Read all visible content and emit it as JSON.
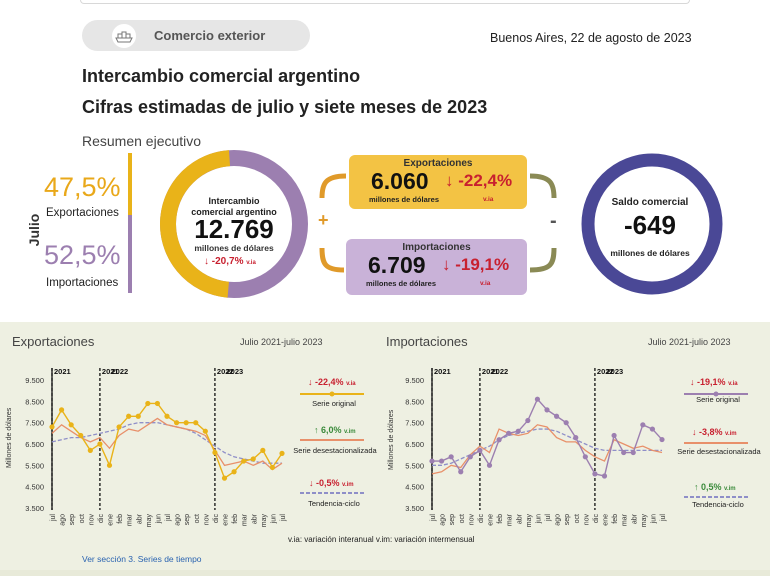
{
  "header": {
    "section_label": "Comercio exterior",
    "section_icon": "trade-ship-icon",
    "date": "Buenos Aires, 22 de agosto de 2023",
    "title": "Intercambio comercial argentino",
    "subtitle": "Cifras estimadas de julio y siete meses de 2023",
    "summary_label": "Resumen ejecutivo"
  },
  "summary": {
    "month_label": "Julio",
    "exports_share": "47,5%",
    "exports_share_label": "Exportaciones",
    "imports_share": "52,5%",
    "imports_share_label": "Importaciones",
    "exports_share_value": 47.5,
    "imports_share_value": 52.5,
    "interchange": {
      "title": "Intercambio comercial argentino",
      "value": "12.769",
      "unit": "millones de dólares",
      "variation": "-20,7%",
      "variation_suffix": "v.ia"
    },
    "plus_sign": "+",
    "minus_sign": "-",
    "exports": {
      "title": "Exportaciones",
      "value": "6.060",
      "unit": "millones de dólares",
      "variation": "-22,4%",
      "variation_suffix": "v.ia"
    },
    "imports": {
      "title": "Importaciones",
      "value": "6.709",
      "unit": "millones de dólares",
      "variation": "-19,1%",
      "variation_suffix": "v.ia"
    },
    "balance": {
      "title": "Saldo comercial",
      "value": "-649",
      "unit": "millones de dólares"
    }
  },
  "colors": {
    "exports": "#e9b319",
    "imports": "#9c7fb0",
    "seasonal": "#e8906a",
    "trend": "#8f8fc8",
    "balance_ring": "#4a4896",
    "negative": "#c8202f",
    "positive": "#3a8a3a"
  },
  "footer": {
    "note": "v.ia: variación interanual   v.im: variación intermensual",
    "link": "Ver sección 3. Series de tiempo"
  },
  "chart_data": [
    {
      "type": "line",
      "title": "Exportaciones",
      "period": "Julio 2021-julio 2023",
      "ylabel": "Millones de dólares",
      "ylim": [
        3500,
        9500
      ],
      "yticks": [
        "9.500",
        "8.500",
        "7.500",
        "6.500",
        "5.500",
        "4.500",
        "3.500"
      ],
      "ytick_values": [
        9500,
        8500,
        7500,
        6500,
        5500,
        4500,
        3500
      ],
      "year_labels": [
        "2021",
        "2021",
        "2022",
        "2022",
        "2023"
      ],
      "year_label_positions": [
        0,
        5,
        6,
        17,
        18
      ],
      "x": [
        "jul",
        "ago",
        "sep",
        "oct",
        "nov",
        "dic",
        "ene",
        "feb",
        "mar",
        "abr",
        "may",
        "jun",
        "jul",
        "ago",
        "sep",
        "oct",
        "nov",
        "dic",
        "ene",
        "feb",
        "mar",
        "abr",
        "may",
        "jun",
        "jul"
      ],
      "series": [
        {
          "name": "Serie original",
          "variation": "-22,4%",
          "variation_suffix": "v.ia",
          "direction": "down",
          "values": [
            7300,
            8100,
            7400,
            6900,
            6200,
            6500,
            5500,
            7300,
            7800,
            7800,
            8400,
            8400,
            7800,
            7500,
            7500,
            7500,
            7100,
            6100,
            4900,
            5200,
            5700,
            5800,
            6200,
            5400,
            6060
          ]
        },
        {
          "name": "Serie desestacionalizada",
          "variation": "6,0%",
          "variation_suffix": "v.im",
          "direction": "up",
          "values": [
            7000,
            7400,
            7100,
            6800,
            6600,
            6800,
            6300,
            6900,
            7200,
            7100,
            7400,
            7700,
            7400,
            7300,
            7200,
            7100,
            6900,
            6200,
            5500,
            5600,
            5700,
            5500,
            5700,
            5300,
            5600
          ]
        },
        {
          "name": "Tendencia-ciclo",
          "variation": "-0,5%",
          "variation_suffix": "v.im",
          "direction": "down",
          "values": [
            6600,
            6700,
            6800,
            6800,
            6900,
            7000,
            7100,
            7200,
            7400,
            7500,
            7500,
            7500,
            7400,
            7300,
            7200,
            7000,
            6700,
            6400,
            6100,
            5900,
            5800,
            5700,
            5600,
            5600,
            5600
          ]
        }
      ]
    },
    {
      "type": "line",
      "title": "Importaciones",
      "period": "Julio 2021-julio 2023",
      "ylabel": "Millones de dólares",
      "ylim": [
        3500,
        9500
      ],
      "yticks": [
        "9.500",
        "8.500",
        "7.500",
        "6.500",
        "5.500",
        "4.500",
        "3.500"
      ],
      "ytick_values": [
        9500,
        8500,
        7500,
        6500,
        5500,
        4500,
        3500
      ],
      "year_labels": [
        "2021",
        "2021",
        "2022",
        "2022",
        "2023"
      ],
      "year_label_positions": [
        0,
        5,
        6,
        17,
        18
      ],
      "x": [
        "jul",
        "ago",
        "sep",
        "oct",
        "nov",
        "dic",
        "ene",
        "feb",
        "mar",
        "abr",
        "may",
        "jun",
        "jul",
        "ago",
        "sep",
        "oct",
        "nov",
        "dic",
        "ene",
        "feb",
        "mar",
        "abr",
        "may",
        "jun",
        "jul"
      ],
      "series": [
        {
          "name": "Serie original",
          "variation": "-19,1%",
          "variation_suffix": "v.ia",
          "direction": "down",
          "values": [
            5700,
            5700,
            5900,
            5200,
            5900,
            6200,
            5500,
            6700,
            7000,
            7100,
            7600,
            8600,
            8100,
            7800,
            7500,
            6800,
            5900,
            5100,
            5000,
            6900,
            6100,
            6100,
            7400,
            7200,
            6709
          ]
        },
        {
          "name": "Serie desestacionalizada",
          "variation": "-3,8%",
          "variation_suffix": "v.im",
          "direction": "down",
          "values": [
            5100,
            5200,
            5500,
            5400,
            6000,
            6400,
            6100,
            7200,
            7000,
            6900,
            7000,
            7400,
            7300,
            6800,
            6600,
            6600,
            6200,
            5900,
            5700,
            6700,
            6500,
            6300,
            6400,
            6200,
            6100
          ]
        },
        {
          "name": "Tendencia-ciclo",
          "variation": "0,5%",
          "variation_suffix": "v.im",
          "direction": "up",
          "values": [
            5500,
            5500,
            5600,
            5800,
            6000,
            6200,
            6400,
            6700,
            6900,
            7000,
            7100,
            7200,
            7200,
            7100,
            6900,
            6700,
            6500,
            6300,
            6200,
            6200,
            6200,
            6200,
            6200,
            6200,
            6200
          ]
        }
      ]
    }
  ]
}
